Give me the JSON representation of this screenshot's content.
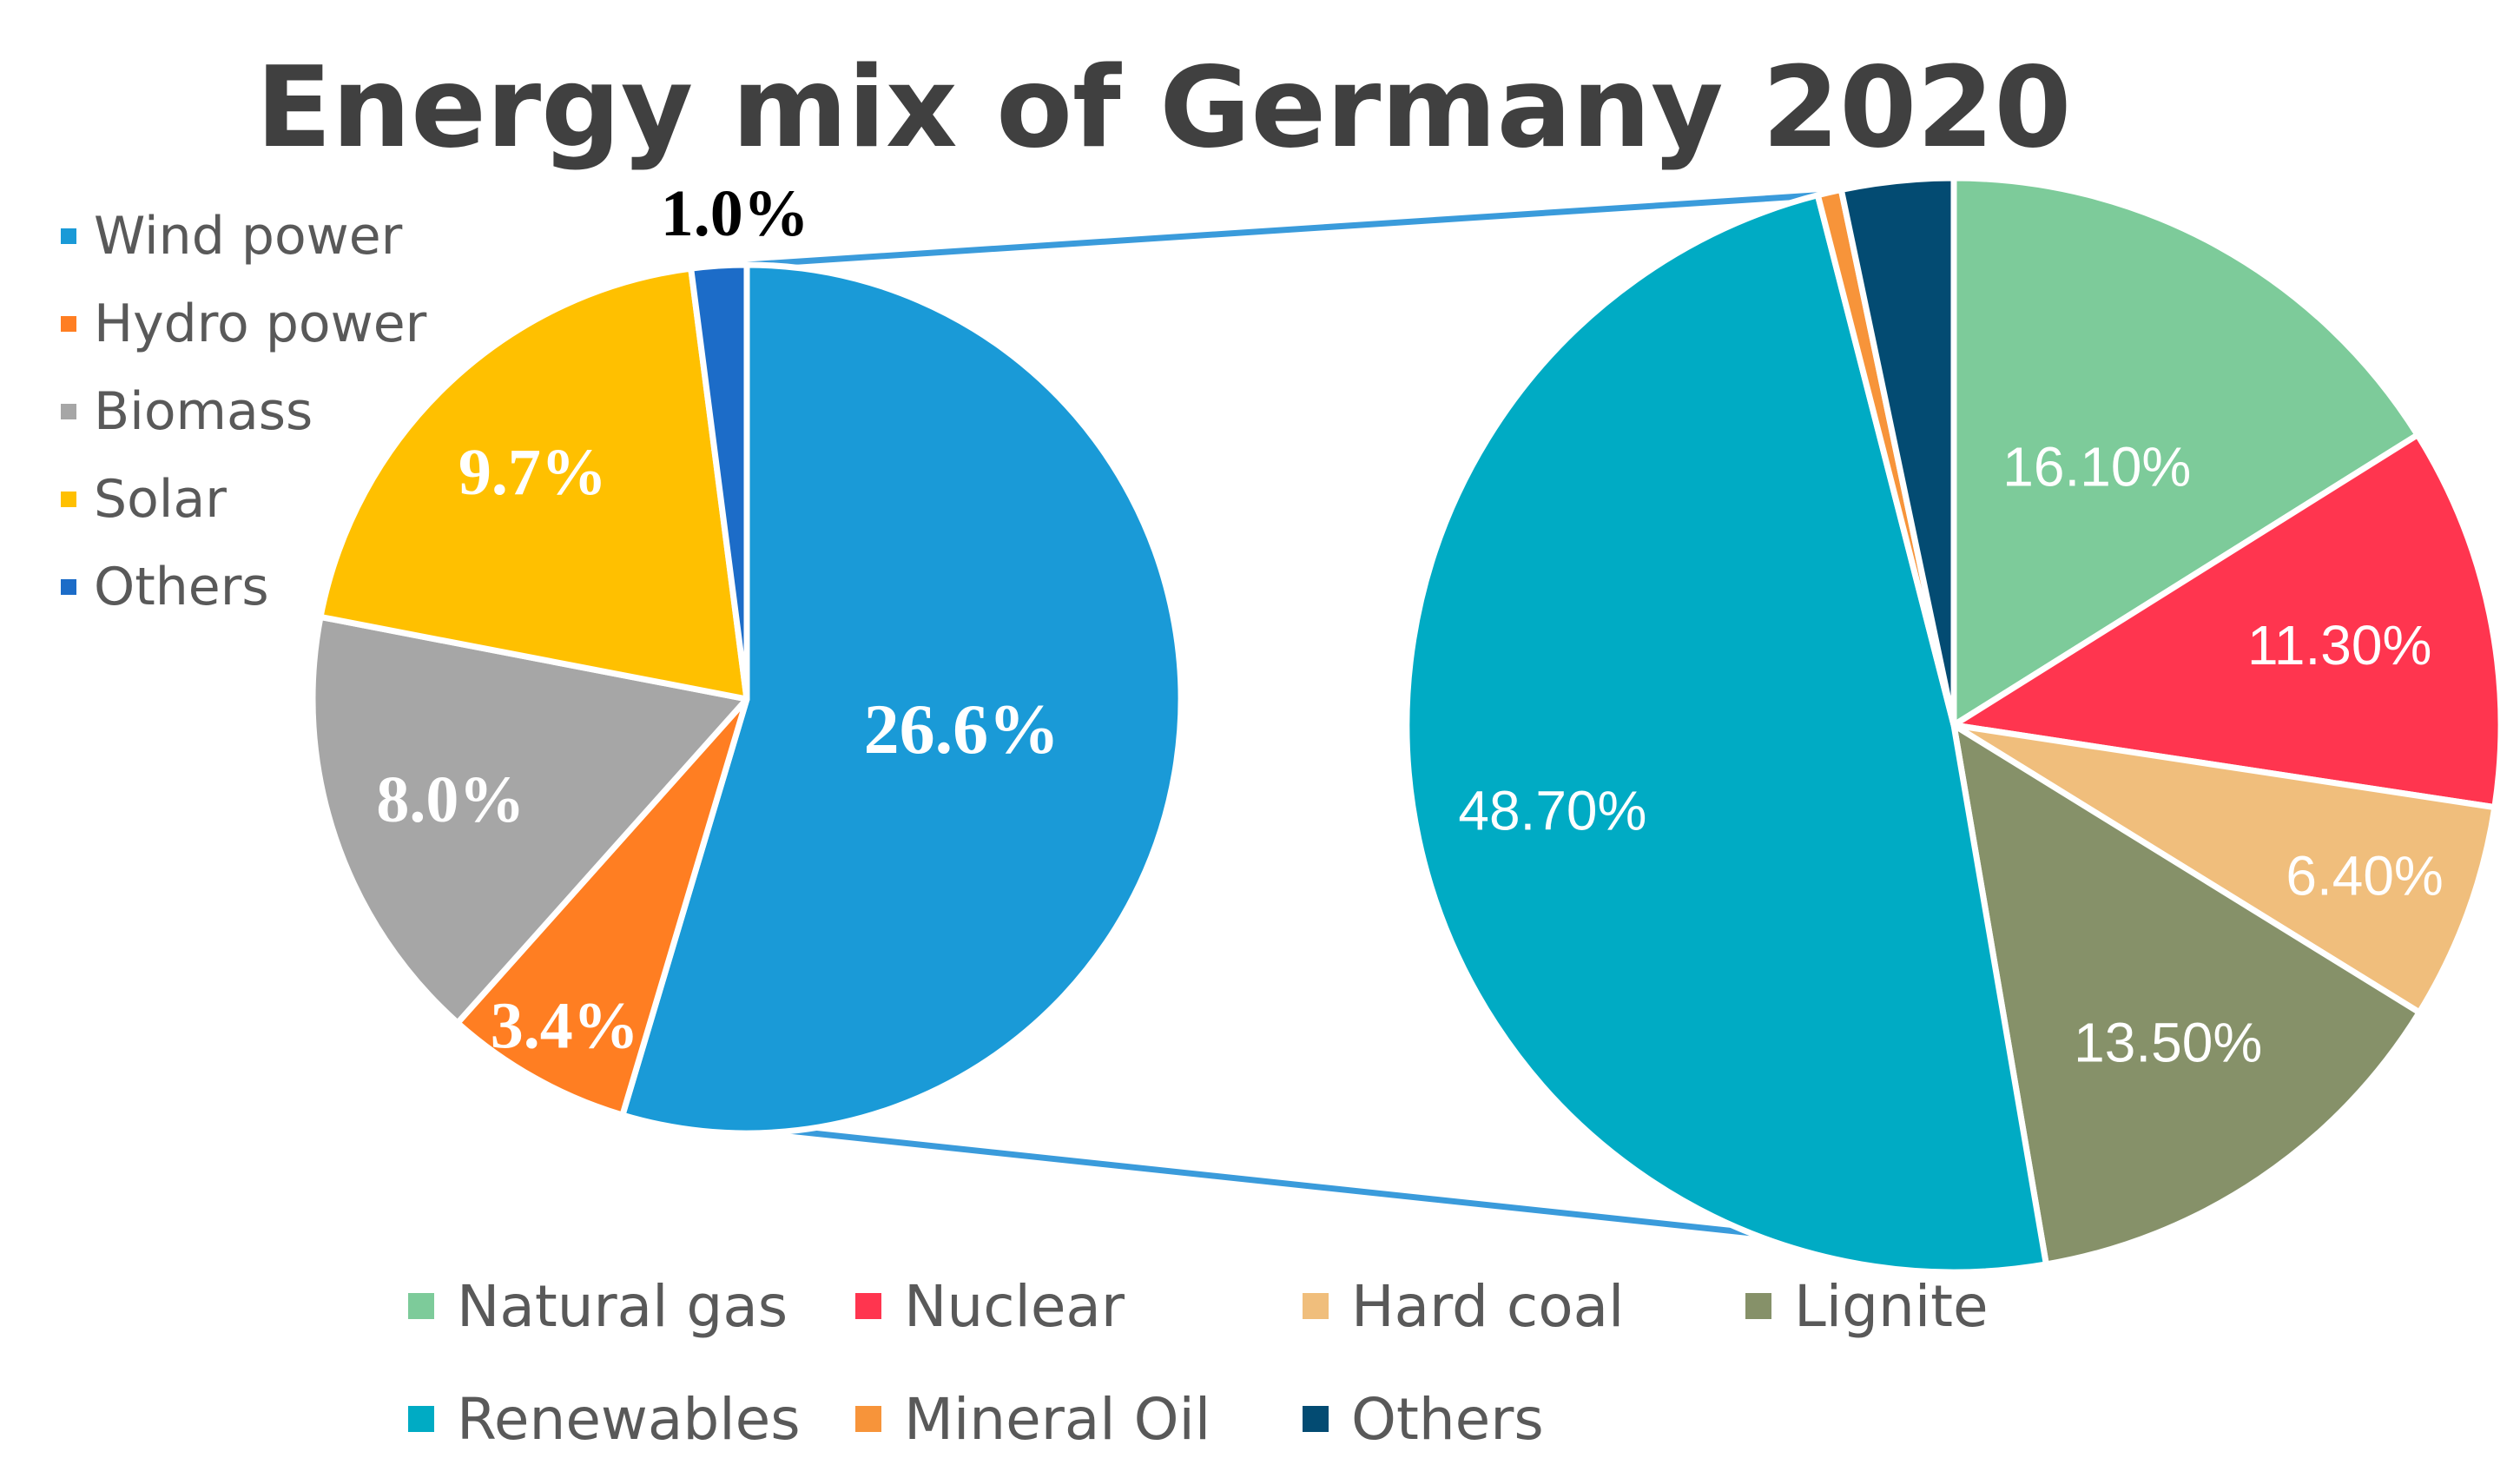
{
  "chart_data": {
    "type": "pie",
    "title": "Energy mix of Germany 2020",
    "main_pie": {
      "slices": [
        {
          "name": "Natural gas",
          "value": 16.1,
          "label": "16.10%",
          "color": "#7DCB9A"
        },
        {
          "name": "Nuclear",
          "value": 11.3,
          "label": "11.30%",
          "color": "#FF354F"
        },
        {
          "name": "Hard coal",
          "value": 6.4,
          "label": "6.40%",
          "color": "#F0BE7C"
        },
        {
          "name": "Lignite",
          "value": 13.5,
          "label": "13.50%",
          "color": "#869169"
        },
        {
          "name": "Renewables",
          "value": 48.7,
          "label": "48.70%",
          "color": "#00ABC4"
        },
        {
          "name": "Mineral Oil",
          "value": 0.7,
          "label": "",
          "color": "#F7943A"
        },
        {
          "name": "Others",
          "value": 3.3,
          "label": "",
          "color": "#034B72"
        }
      ],
      "legend_position": "bottom"
    },
    "renewables_pie": {
      "slices": [
        {
          "name": "Wind power",
          "value": 26.6,
          "label": "26.6%",
          "color": "#1A9AD7"
        },
        {
          "name": "Hydro power",
          "value": 3.4,
          "label": "3.4%",
          "color": "#FF7E22"
        },
        {
          "name": "Biomass",
          "value": 8.0,
          "label": "8.0%",
          "color": "#A6A6A6"
        },
        {
          "name": "Solar",
          "value": 9.7,
          "label": "9.7%",
          "color": "#FFC000"
        },
        {
          "name": "Others",
          "value": 1.0,
          "label": "1.0%",
          "color": "#1C6CC8"
        }
      ],
      "legend_position": "top-left"
    },
    "connector_color": "#3A9BDB"
  }
}
